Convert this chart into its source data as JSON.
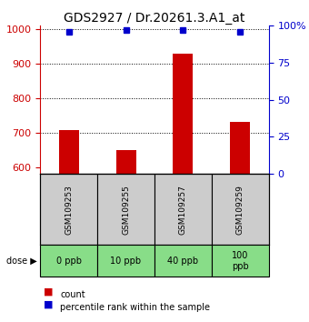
{
  "title": "GDS2927 / Dr.20261.3.A1_at",
  "samples": [
    "GSM109253",
    "GSM109255",
    "GSM109257",
    "GSM109259"
  ],
  "doses": [
    "0 ppb",
    "10 ppb",
    "40 ppb",
    "100\nppb"
  ],
  "bar_values": [
    707,
    650,
    930,
    730
  ],
  "percentile_values": [
    96,
    97,
    97,
    96
  ],
  "bar_color": "#cc0000",
  "percentile_color": "#0000cc",
  "ylim_left": [
    580,
    1010
  ],
  "ylim_right": [
    0,
    100
  ],
  "yticks_left": [
    600,
    700,
    800,
    900,
    1000
  ],
  "yticks_right": [
    0,
    25,
    50,
    75,
    100
  ],
  "grid_values": [
    700,
    800,
    900
  ],
  "dose_bg_color": "#88dd88",
  "sample_bg_color": "#cccccc",
  "title_fontsize": 10,
  "axis_label_color_left": "#cc0000",
  "axis_label_color_right": "#0000cc",
  "bar_width": 0.35
}
